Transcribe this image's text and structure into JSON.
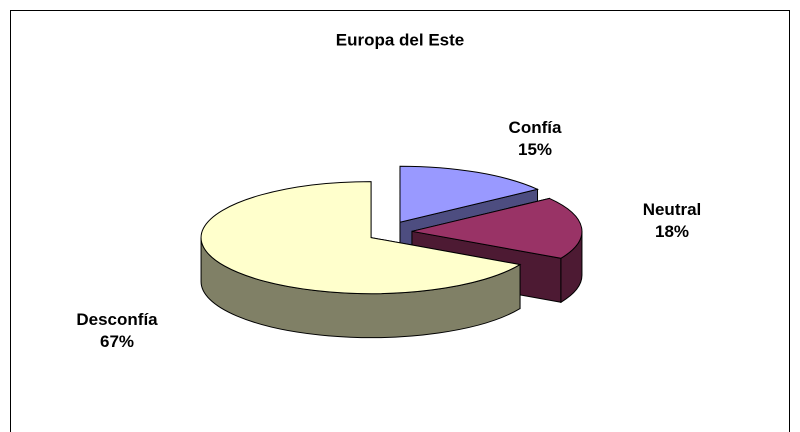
{
  "chart_data": {
    "type": "pie",
    "title": "Europa del Este",
    "categories": [
      "Confía",
      "Neutral",
      "Desconfía"
    ],
    "values": [
      15,
      18,
      67
    ],
    "value_labels": [
      "15%",
      "18%",
      "67%"
    ],
    "colors": [
      "#9999ff",
      "#993366",
      "#ffffcc"
    ]
  }
}
